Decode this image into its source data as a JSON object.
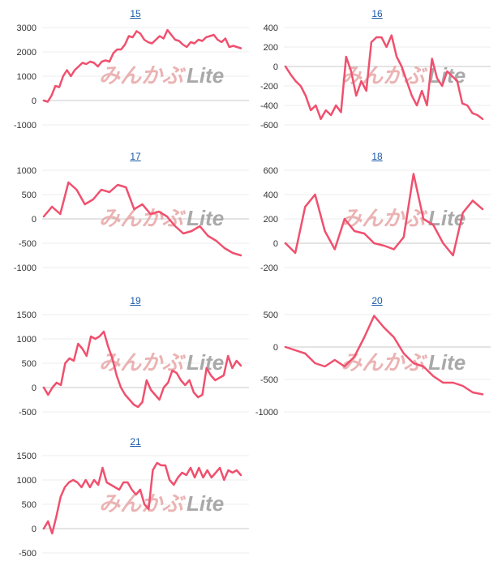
{
  "watermark": {
    "part1": "みんかぶ",
    "part2": "Lite",
    "color1": "#e6a0a0",
    "color2": "#9a9a9a"
  },
  "line_color": "#f0506e",
  "chart_data": [
    {
      "type": "line",
      "title": "15",
      "ylim": [
        -1000,
        3000
      ],
      "yticks": [
        3000,
        2000,
        1000,
        0,
        -1000
      ],
      "values": [
        0,
        -50,
        200,
        600,
        550,
        1000,
        1250,
        1000,
        1250,
        1400,
        1550,
        1500,
        1600,
        1550,
        1400,
        1600,
        1650,
        1600,
        1950,
        2100,
        2100,
        2300,
        2650,
        2600,
        2850,
        2750,
        2500,
        2400,
        2350,
        2500,
        2650,
        2550,
        2900,
        2700,
        2500,
        2450,
        2300,
        2200,
        2400,
        2350,
        2500,
        2450,
        2600,
        2650,
        2700,
        2500,
        2400,
        2550,
        2200,
        2250,
        2200,
        2150
      ]
    },
    {
      "type": "line",
      "title": "16",
      "ylim": [
        -600,
        400
      ],
      "yticks": [
        400,
        200,
        0,
        -200,
        -400,
        -600
      ],
      "values": [
        0,
        -80,
        -150,
        -200,
        -300,
        -450,
        -400,
        -540,
        -450,
        -500,
        -400,
        -470,
        100,
        -50,
        -300,
        -150,
        -250,
        250,
        300,
        300,
        200,
        320,
        100,
        0,
        -150,
        -300,
        -400,
        -250,
        -400,
        80,
        -120,
        -200,
        -50,
        -100,
        -150,
        -380,
        -400,
        -480,
        -500,
        -540
      ]
    },
    {
      "type": "line",
      "title": "17",
      "ylim": [
        -1000,
        1000
      ],
      "yticks": [
        1000,
        500,
        0,
        -500,
        -1000
      ],
      "values": [
        50,
        250,
        100,
        750,
        600,
        300,
        400,
        600,
        550,
        700,
        650,
        200,
        300,
        100,
        150,
        50,
        -150,
        -300,
        -250,
        -150,
        -350,
        -450,
        -600,
        -700,
        -750
      ]
    },
    {
      "type": "line",
      "title": "18",
      "ylim": [
        -200,
        600
      ],
      "yticks": [
        600,
        400,
        200,
        0,
        -200
      ],
      "values": [
        0,
        -80,
        300,
        400,
        100,
        -50,
        200,
        100,
        80,
        0,
        -20,
        -50,
        50,
        570,
        200,
        150,
        0,
        -100,
        250,
        350,
        280
      ]
    },
    {
      "type": "line",
      "title": "19",
      "ylim": [
        -500,
        1500
      ],
      "yticks": [
        1500,
        1000,
        500,
        0,
        -500
      ],
      "values": [
        0,
        -150,
        0,
        100,
        50,
        500,
        600,
        550,
        900,
        800,
        650,
        1050,
        1000,
        1050,
        1150,
        850,
        600,
        250,
        0,
        -150,
        -250,
        -350,
        -400,
        -300,
        150,
        -50,
        -150,
        -250,
        0,
        100,
        350,
        300,
        150,
        50,
        150,
        -100,
        -200,
        -150,
        400,
        250,
        150,
        200,
        250,
        650,
        400,
        550,
        450
      ]
    },
    {
      "type": "line",
      "title": "20",
      "ylim": [
        -1000,
        500
      ],
      "yticks": [
        500,
        0,
        -500,
        -1000
      ],
      "values": [
        0,
        -50,
        -100,
        -250,
        -300,
        -200,
        -300,
        -150,
        150,
        480,
        300,
        150,
        -100,
        -250,
        -300,
        -450,
        -550,
        -550,
        -600,
        -700,
        -730
      ]
    },
    {
      "type": "line",
      "title": "21",
      "ylim": [
        -500,
        1500
      ],
      "yticks": [
        1500,
        1000,
        500,
        0,
        -500
      ],
      "values": [
        0,
        150,
        -100,
        250,
        650,
        850,
        950,
        1000,
        950,
        850,
        1000,
        850,
        1000,
        900,
        1250,
        950,
        900,
        850,
        800,
        950,
        950,
        800,
        700,
        800,
        500,
        400,
        1200,
        1350,
        1300,
        1300,
        1000,
        900,
        1050,
        1150,
        1100,
        1250,
        1050,
        1250,
        1050,
        1200,
        1050,
        1150,
        1250,
        1000,
        1200,
        1150,
        1200,
        1100
      ]
    }
  ]
}
